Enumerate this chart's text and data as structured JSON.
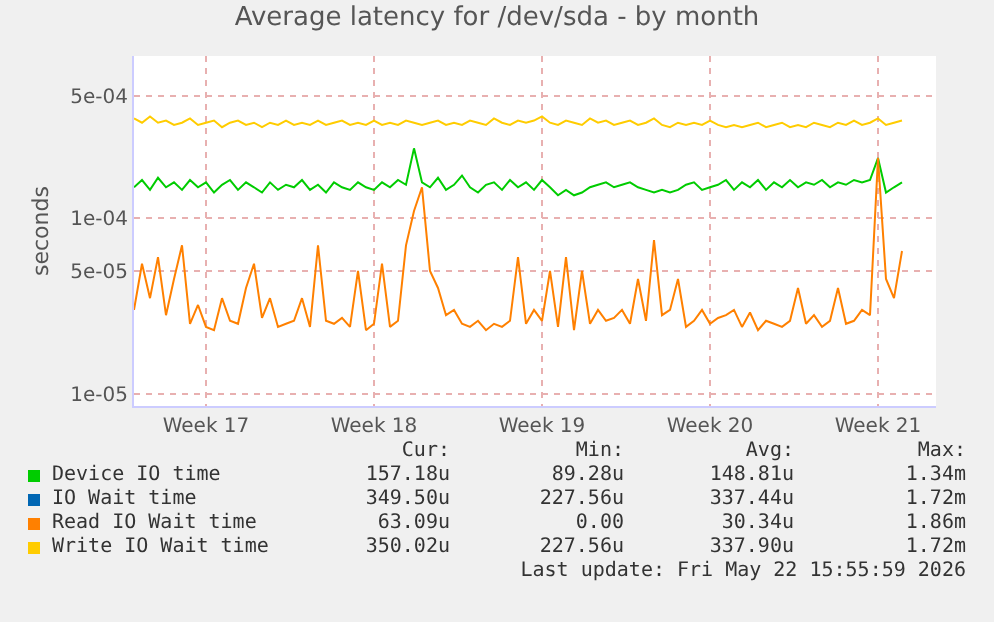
{
  "chart_data": {
    "type": "line",
    "title": "Average latency for /dev/sda - by month",
    "ylabel": "seconds",
    "log": "y",
    "grid": true,
    "legend": "bottom",
    "marker": "none",
    "line_style": "solid",
    "x": [
      "2026-04-20T12:00",
      "2026-04-20T20:00",
      "2026-04-21T04:00",
      "2026-04-21T12:00",
      "2026-04-21T20:00",
      "2026-04-22T04:00",
      "2026-04-22T12:00",
      "2026-04-22T20:00",
      "2026-04-23T04:00",
      "2026-04-23T12:00",
      "2026-04-23T20:00",
      "2026-04-24T04:00",
      "2026-04-24T12:00",
      "2026-04-24T20:00",
      "2026-04-25T04:00",
      "2026-04-25T12:00",
      "2026-04-25T20:00",
      "2026-04-26T04:00",
      "2026-04-26T12:00",
      "2026-04-26T20:00",
      "2026-04-27T04:00",
      "2026-04-27T12:00",
      "2026-04-27T20:00",
      "2026-04-28T04:00",
      "2026-04-28T12:00",
      "2026-04-28T20:00",
      "2026-04-29T04:00",
      "2026-04-29T12:00",
      "2026-04-29T20:00",
      "2026-04-30T04:00",
      "2026-04-30T12:00",
      "2026-04-30T20:00",
      "2026-05-01T04:00",
      "2026-05-01T12:00",
      "2026-05-01T20:00",
      "2026-05-02T04:00",
      "2026-05-02T12:00",
      "2026-05-02T20:00",
      "2026-05-03T04:00",
      "2026-05-03T12:00",
      "2026-05-03T20:00",
      "2026-05-04T04:00",
      "2026-05-04T12:00",
      "2026-05-04T20:00",
      "2026-05-05T04:00",
      "2026-05-05T12:00",
      "2026-05-05T20:00",
      "2026-05-06T04:00",
      "2026-05-06T12:00",
      "2026-05-06T20:00",
      "2026-05-07T04:00",
      "2026-05-07T12:00",
      "2026-05-07T20:00",
      "2026-05-08T04:00",
      "2026-05-08T12:00",
      "2026-05-08T20:00",
      "2026-05-09T04:00",
      "2026-05-09T12:00",
      "2026-05-09T20:00",
      "2026-05-10T04:00",
      "2026-05-10T12:00",
      "2026-05-10T20:00",
      "2026-05-11T04:00",
      "2026-05-11T12:00",
      "2026-05-11T20:00",
      "2026-05-12T04:00",
      "2026-05-12T12:00",
      "2026-05-12T20:00",
      "2026-05-13T04:00",
      "2026-05-13T12:00",
      "2026-05-13T20:00",
      "2026-05-14T04:00",
      "2026-05-14T12:00",
      "2026-05-14T20:00",
      "2026-05-15T04:00",
      "2026-05-15T12:00",
      "2026-05-15T20:00",
      "2026-05-16T04:00",
      "2026-05-16T12:00",
      "2026-05-16T20:00",
      "2026-05-17T04:00",
      "2026-05-17T12:00",
      "2026-05-17T20:00",
      "2026-05-18T04:00",
      "2026-05-18T12:00",
      "2026-05-18T20:00",
      "2026-05-19T04:00",
      "2026-05-19T12:00",
      "2026-05-19T20:00",
      "2026-05-20T04:00",
      "2026-05-20T12:00",
      "2026-05-20T20:00",
      "2026-05-21T04:00",
      "2026-05-21T12:00",
      "2026-05-21T20:00",
      "2026-05-22T04:00",
      "2026-05-22T12:00"
    ],
    "xlim": [
      "2026-04-20T12:00",
      "2026-05-23T22:00"
    ],
    "xticks": [
      {
        "value": "2026-04-23T12:00",
        "label": "Week 17"
      },
      {
        "value": "2026-04-30T12:00",
        "label": "Week 18"
      },
      {
        "value": "2026-05-07T12:00",
        "label": "Week 19"
      },
      {
        "value": "2026-05-14T12:00",
        "label": "Week 20"
      },
      {
        "value": "2026-05-21T12:00",
        "label": "Week 21"
      }
    ],
    "ylim": [
      8.5e-06,
      0.00084
    ],
    "yticks": [
      {
        "value": 1e-05,
        "label": "1e-05"
      },
      {
        "value": 5e-05,
        "label": "5e-05"
      },
      {
        "value": 0.0001,
        "label": "1e-04"
      },
      {
        "value": 0.0005,
        "label": "5e-04"
      }
    ],
    "series": [
      {
        "name": "Device IO time",
        "color": "#00cc00",
        "values": [
          0.00015,
          0.000165,
          0.000145,
          0.00017,
          0.00015,
          0.00016,
          0.000145,
          0.000165,
          0.00015,
          0.00016,
          0.00014,
          0.000155,
          0.000165,
          0.000145,
          0.00016,
          0.00015,
          0.00014,
          0.00016,
          0.000145,
          0.000155,
          0.00015,
          0.000165,
          0.000145,
          0.000155,
          0.00014,
          0.00016,
          0.00015,
          0.000145,
          0.00016,
          0.00015,
          0.000145,
          0.00016,
          0.00015,
          0.000165,
          0.000155,
          0.00025,
          0.00016,
          0.00015,
          0.00017,
          0.000145,
          0.000155,
          0.000175,
          0.00015,
          0.00014,
          0.000155,
          0.00016,
          0.000145,
          0.000165,
          0.00015,
          0.00016,
          0.000145,
          0.000165,
          0.00015,
          0.000135,
          0.000145,
          0.000135,
          0.00014,
          0.00015,
          0.000155,
          0.00016,
          0.00015,
          0.000155,
          0.00016,
          0.00015,
          0.000145,
          0.00014,
          0.000145,
          0.00014,
          0.000145,
          0.000155,
          0.00016,
          0.000145,
          0.00015,
          0.000155,
          0.000165,
          0.000145,
          0.00016,
          0.00015,
          0.000165,
          0.000145,
          0.00016,
          0.00015,
          0.000165,
          0.00015,
          0.00016,
          0.000155,
          0.000165,
          0.00015,
          0.00016,
          0.000155,
          0.000165,
          0.00016,
          0.000165,
          0.00022,
          0.00014,
          0.00015,
          0.00016
        ]
      },
      {
        "name": "IO Wait time",
        "color": "#0066b3",
        "values": [
          null,
          null,
          null,
          null,
          null,
          null,
          null,
          null,
          null,
          null,
          null,
          null,
          null,
          null,
          null,
          null,
          null,
          null,
          null,
          null,
          null,
          null,
          null,
          null,
          null,
          null,
          null,
          null,
          null,
          null,
          null,
          null,
          null,
          null,
          null,
          null,
          null,
          null,
          null,
          null,
          null,
          null,
          null,
          null,
          null,
          null,
          null,
          null,
          null,
          null,
          null,
          null,
          null,
          null,
          null,
          null,
          null,
          null,
          null,
          null,
          null,
          null,
          null,
          null,
          null,
          null,
          null,
          null,
          null,
          null,
          null,
          null,
          null,
          null,
          null,
          null,
          null,
          null,
          null,
          null,
          null,
          null,
          null,
          null,
          null,
          null,
          null,
          null,
          null,
          null,
          null,
          null,
          null,
          null,
          null,
          null,
          null
        ]
      },
      {
        "name": "Read IO Wait time",
        "color": "#ff8000",
        "values": [
          3e-05,
          5.5e-05,
          3.5e-05,
          6e-05,
          2.8e-05,
          4.5e-05,
          7e-05,
          2.5e-05,
          3.2e-05,
          2.4e-05,
          2.3e-05,
          3.5e-05,
          2.6e-05,
          2.5e-05,
          4e-05,
          5.5e-05,
          2.7e-05,
          3.5e-05,
          2.4e-05,
          2.5e-05,
          2.6e-05,
          3.5e-05,
          2.4e-05,
          7e-05,
          2.6e-05,
          2.5e-05,
          2.7e-05,
          2.4e-05,
          5e-05,
          2.3e-05,
          2.5e-05,
          5.5e-05,
          2.4e-05,
          2.6e-05,
          7e-05,
          0.00011,
          0.00015,
          5e-05,
          4e-05,
          2.8e-05,
          3e-05,
          2.5e-05,
          2.4e-05,
          2.6e-05,
          2.3e-05,
          2.5e-05,
          2.4e-05,
          2.6e-05,
          6e-05,
          2.5e-05,
          3e-05,
          2.6e-05,
          5e-05,
          2.4e-05,
          6e-05,
          2.3e-05,
          5e-05,
          2.5e-05,
          3e-05,
          2.6e-05,
          2.7e-05,
          3e-05,
          2.5e-05,
          4.5e-05,
          2.6e-05,
          7.5e-05,
          2.8e-05,
          3e-05,
          4.5e-05,
          2.4e-05,
          2.6e-05,
          3e-05,
          2.5e-05,
          2.7e-05,
          2.8e-05,
          3e-05,
          2.4e-05,
          2.9e-05,
          2.3e-05,
          2.6e-05,
          2.5e-05,
          2.4e-05,
          2.6e-05,
          4e-05,
          2.5e-05,
          2.8e-05,
          2.4e-05,
          2.6e-05,
          4e-05,
          2.5e-05,
          2.6e-05,
          3e-05,
          2.8e-05,
          0.00022,
          4.5e-05,
          3.5e-05,
          6.5e-05
        ]
      },
      {
        "name": "Write IO Wait time",
        "color": "#ffcc00",
        "values": [
          0.00037,
          0.00035,
          0.00038,
          0.00035,
          0.00036,
          0.00034,
          0.00035,
          0.00037,
          0.00034,
          0.00035,
          0.00036,
          0.00033,
          0.00035,
          0.00036,
          0.00034,
          0.00035,
          0.00033,
          0.00035,
          0.00034,
          0.00036,
          0.00034,
          0.00035,
          0.00034,
          0.00036,
          0.00034,
          0.00035,
          0.00036,
          0.00034,
          0.00035,
          0.00034,
          0.00036,
          0.00034,
          0.00035,
          0.00034,
          0.00036,
          0.00035,
          0.00034,
          0.00035,
          0.00036,
          0.00034,
          0.00035,
          0.00034,
          0.00036,
          0.00035,
          0.00034,
          0.00037,
          0.00035,
          0.00034,
          0.00036,
          0.00035,
          0.00036,
          0.00038,
          0.00035,
          0.00034,
          0.00036,
          0.00035,
          0.00034,
          0.00037,
          0.00035,
          0.00036,
          0.00034,
          0.00035,
          0.00036,
          0.00034,
          0.00035,
          0.00037,
          0.00034,
          0.00033,
          0.00035,
          0.00034,
          0.00035,
          0.00034,
          0.00036,
          0.00034,
          0.00033,
          0.00034,
          0.00033,
          0.00034,
          0.00035,
          0.00033,
          0.00034,
          0.00035,
          0.00033,
          0.00034,
          0.00033,
          0.00035,
          0.00034,
          0.00033,
          0.00035,
          0.00034,
          0.00036,
          0.00034,
          0.00035,
          0.00037,
          0.00034,
          0.00035,
          0.00036
        ]
      }
    ],
    "annotations": [
      "Cur:",
      "Min:",
      "Avg:",
      "Max:",
      "157.18u",
      "89.28u",
      "148.81u",
      "1.34m",
      "349.50u",
      "227.56u",
      "337.44u",
      "1.72m",
      "63.09u",
      "0.00",
      "30.34u",
      "1.86m",
      "350.02u",
      "227.56u",
      "337.90u",
      "1.72m",
      "Last update: Fri May 22 15:55:59 2026"
    ]
  }
}
